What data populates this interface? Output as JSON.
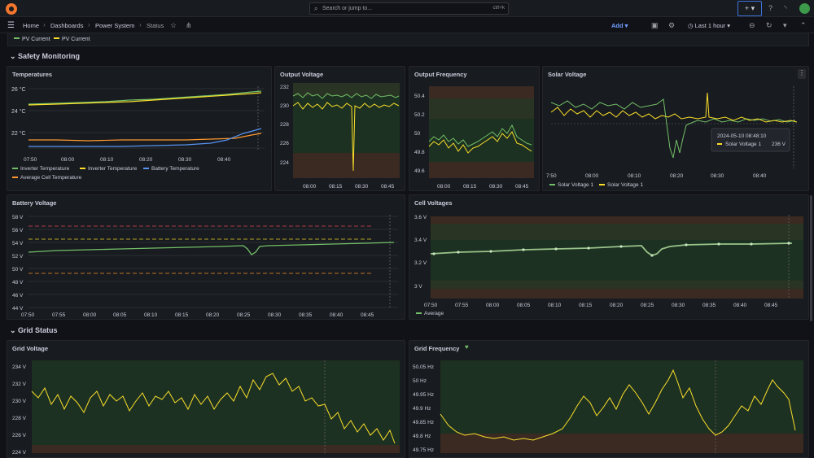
{
  "topbar": {
    "search_placeholder": "Search or jump to...",
    "search_shortcut": "ctrl+k",
    "new_button": "+ ▾"
  },
  "breadcrumb": [
    "Home",
    "Dashboards",
    "Power System",
    "Status"
  ],
  "toolbar": {
    "add_label": "Add",
    "time_range": "Last 1 hour"
  },
  "top_legend": [
    "PV Current",
    "PV Current"
  ],
  "rows": [
    {
      "title": "Safety Monitoring"
    },
    {
      "title": "Grid Status"
    }
  ],
  "panels": {
    "temperatures": {
      "title": "Temperatures",
      "yticks": [
        "26 °C",
        "24 °C",
        "22 °C"
      ],
      "xticks": [
        "07:50",
        "08:00",
        "08:10",
        "08:20",
        "08:30",
        "08:40"
      ],
      "legend": [
        "Inverter Temperature",
        "Inverter Temperature",
        "Battery Temperature",
        "Average Cell Temperature"
      ]
    },
    "output_voltage": {
      "title": "Output Voltage",
      "yticks": [
        "232",
        "230",
        "228",
        "226",
        "224"
      ],
      "xticks": [
        "08:00",
        "08:15",
        "08:30",
        "08:45"
      ]
    },
    "output_frequency": {
      "title": "Output Frequency",
      "yticks": [
        "50.4",
        "50.2",
        "50",
        "49.8",
        "49.6"
      ],
      "xticks": [
        "08:00",
        "08:15",
        "08:30",
        "08:45"
      ]
    },
    "solar_voltage": {
      "title": "Solar Voltage",
      "xticks": [
        "7:50",
        "08:00",
        "08:10",
        "08:20",
        "08:30",
        "08:40"
      ],
      "legend": [
        "Solar Voltage 1",
        "Solar Voltage 1"
      ],
      "tooltip": {
        "time": "2024-05-10 08:48:10",
        "series": "Solar Voltage 1",
        "value": "236 V"
      }
    },
    "battery_voltage": {
      "title": "Battery Voltage",
      "yticks": [
        "58 V",
        "56 V",
        "54 V",
        "52 V",
        "50 V",
        "48 V",
        "46 V",
        "44 V"
      ],
      "xticks": [
        "07:50",
        "07:55",
        "08:00",
        "08:05",
        "08:10",
        "08:15",
        "08:20",
        "08:25",
        "08:30",
        "08:35",
        "08:40",
        "08:45"
      ]
    },
    "cell_voltages": {
      "title": "Cell Voltages",
      "yticks": [
        "3.6 V",
        "3.4 V",
        "3.2 V",
        "3 V"
      ],
      "xticks": [
        "07:50",
        "07:55",
        "08:00",
        "08:05",
        "08:10",
        "08:15",
        "08:20",
        "08:25",
        "08:30",
        "08:35",
        "08:40",
        "08:45"
      ],
      "legend": [
        "Average"
      ]
    },
    "grid_voltage": {
      "title": "Grid Voltage",
      "yticks": [
        "234 V",
        "232 V",
        "230 V",
        "228 V",
        "226 V",
        "224 V"
      ]
    },
    "grid_frequency": {
      "title": "Grid Frequency",
      "yticks": [
        "50.05 Hz",
        "50 Hz",
        "49.95 Hz",
        "49.9 Hz",
        "49.85 Hz",
        "49.8 Hz",
        "49.75 Hz"
      ]
    }
  },
  "colors": {
    "green": "#73bf69",
    "yellow": "#fade2a",
    "blue": "#5794f2",
    "orange": "#ff9830",
    "red": "#f2495c"
  }
}
